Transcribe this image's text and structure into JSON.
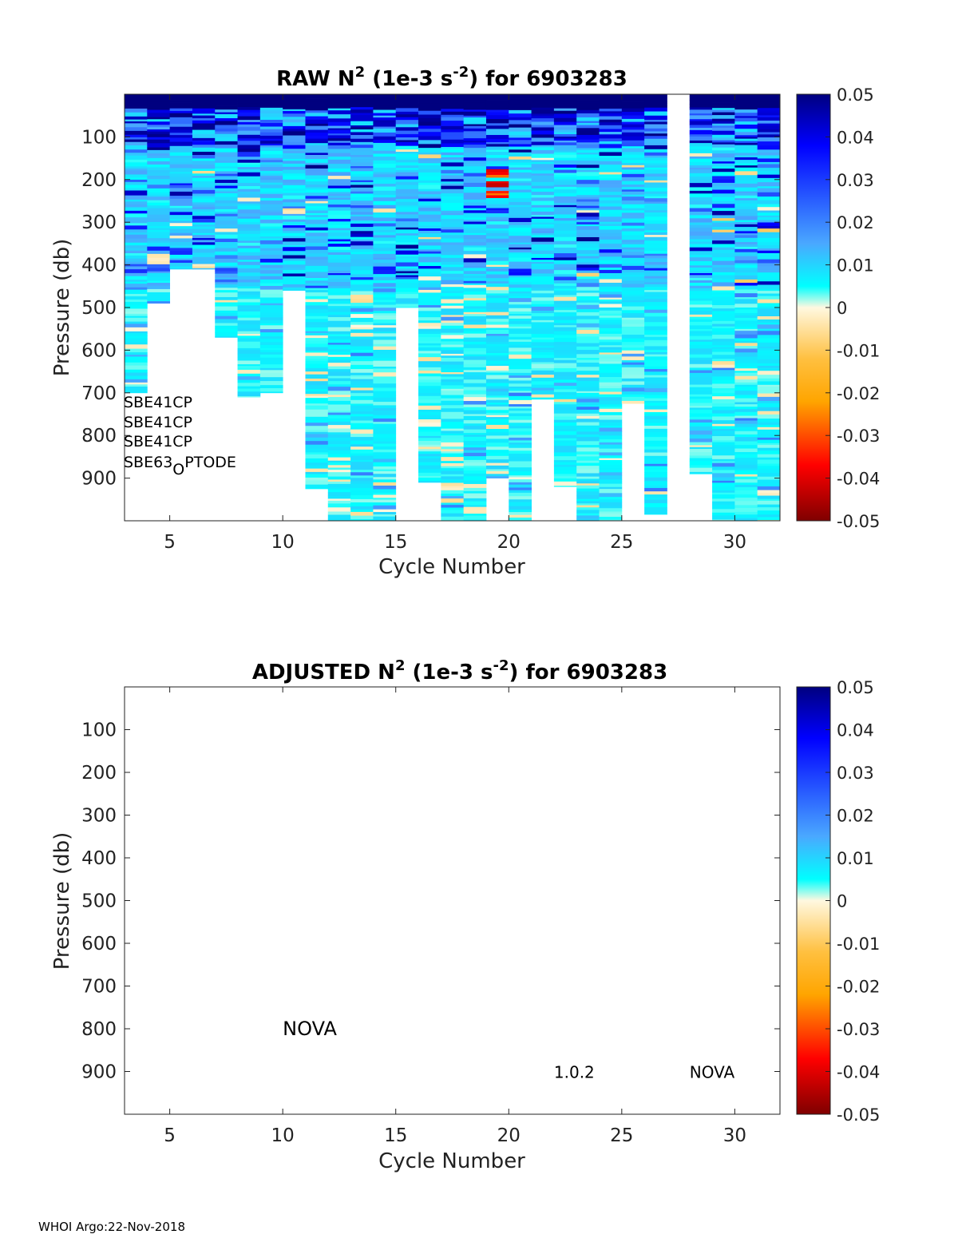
{
  "chart_data": [
    {
      "type": "heatmap",
      "title": {
        "prefix": "RAW N",
        "sup1": "2",
        "middle": " (1e-3 s",
        "sup2": "-2",
        "suffix": ") for 6903283"
      },
      "xlabel": "Cycle Number",
      "ylabel": "Pressure (db)",
      "xlim": [
        3,
        32
      ],
      "ylim": [
        1000,
        0
      ],
      "xticks": [
        "5",
        "10",
        "15",
        "20",
        "25",
        "30"
      ],
      "yticks": [
        "100",
        "200",
        "300",
        "400",
        "500",
        "600",
        "700",
        "800",
        "900"
      ],
      "colorbar": {
        "range": [
          -0.05,
          0.05
        ],
        "ticks": [
          "0.05",
          "0.04",
          "0.03",
          "0.02",
          "0.01",
          "0",
          "-0.01",
          "-0.02",
          "-0.03",
          "-0.04",
          "-0.05"
        ]
      },
      "columns": [
        {
          "cycle": 4,
          "max_pressure": 700
        },
        {
          "cycle": 5,
          "max_pressure": 490
        },
        {
          "cycle": 6,
          "max_pressure": 410
        },
        {
          "cycle": 7,
          "max_pressure": 410
        },
        {
          "cycle": 8,
          "max_pressure": 570
        },
        {
          "cycle": 9,
          "max_pressure": 710
        },
        {
          "cycle": 10,
          "max_pressure": 700
        },
        {
          "cycle": 11,
          "max_pressure": 460
        },
        {
          "cycle": 12,
          "max_pressure": 925
        },
        {
          "cycle": 13,
          "max_pressure": 1000
        },
        {
          "cycle": 14,
          "max_pressure": 1000
        },
        {
          "cycle": 15,
          "max_pressure": 1000
        },
        {
          "cycle": 16,
          "max_pressure": 500
        },
        {
          "cycle": 17,
          "max_pressure": 910
        },
        {
          "cycle": 18,
          "max_pressure": 1000
        },
        {
          "cycle": 19,
          "max_pressure": 1000
        },
        {
          "cycle": 20,
          "max_pressure": 900
        },
        {
          "cycle": 21,
          "max_pressure": 1000
        },
        {
          "cycle": 22,
          "max_pressure": 715
        },
        {
          "cycle": 23,
          "max_pressure": 920
        },
        {
          "cycle": 24,
          "max_pressure": 1000
        },
        {
          "cycle": 25,
          "max_pressure": 1000
        },
        {
          "cycle": 26,
          "max_pressure": 725
        },
        {
          "cycle": 27,
          "max_pressure": 985
        },
        {
          "cycle": 28,
          "max_pressure": 0
        },
        {
          "cycle": 29,
          "max_pressure": 890
        },
        {
          "cycle": 30,
          "max_pressure": 1000
        },
        {
          "cycle": 31,
          "max_pressure": 1000
        },
        {
          "cycle": 32,
          "max_pressure": 1000
        }
      ],
      "sensor_labels": [
        "SBE41CP",
        "SBE41CP",
        "SBE41CP"
      ],
      "sensor_label_sub": {
        "main": "SBE63",
        "sub": "O",
        "rest": "PTODE"
      }
    },
    {
      "type": "heatmap",
      "title": {
        "prefix": "ADJUSTED N",
        "sup1": "2",
        "middle": " (1e-3 s",
        "sup2": "-2",
        "suffix": ") for 6903283"
      },
      "xlabel": "Cycle Number",
      "ylabel": "Pressure (db)",
      "xlim": [
        3,
        32
      ],
      "ylim": [
        1000,
        0
      ],
      "xticks": [
        "5",
        "10",
        "15",
        "20",
        "25",
        "30"
      ],
      "yticks": [
        "100",
        "200",
        "300",
        "400",
        "500",
        "600",
        "700",
        "800",
        "900"
      ],
      "colorbar": {
        "range": [
          -0.05,
          0.05
        ],
        "ticks": [
          "0.05",
          "0.04",
          "0.03",
          "0.02",
          "0.01",
          "0",
          "-0.01",
          "-0.02",
          "-0.03",
          "-0.04",
          "-0.05"
        ]
      },
      "annotations": [
        {
          "text": "NOVA",
          "x": 10,
          "y": 800
        },
        {
          "text": "1.0.2",
          "x": 22,
          "y": 900
        },
        {
          "text": "NOVA",
          "x": 28,
          "y": 900
        }
      ]
    }
  ],
  "footer": "WHOI Argo:22-Nov-2018",
  "colors": {
    "deep_blue": "#00007f",
    "blue": "#0000ff",
    "cyan": "#00ffff",
    "pale": "#fff8e0",
    "orange": "#ffa500",
    "red": "#ff0000",
    "dark_red": "#7f0000"
  }
}
